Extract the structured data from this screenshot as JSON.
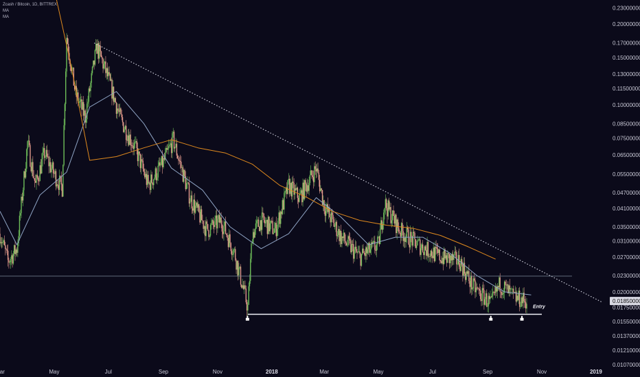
{
  "legend": {
    "symbol_line": "Zcash / Bitcoin, 1D, BITTREX",
    "ma1": "MA",
    "ma2": "MA"
  },
  "chart_data": {
    "type": "candlestick",
    "symbol": "Zcash / Bitcoin",
    "timeframe": "1D",
    "exchange": "BITTREX",
    "log_scale": true,
    "ylim": [
      0.0107,
      0.246
    ],
    "x_range": [
      "2017-03-01",
      "2019-01-15"
    ],
    "y_ticks": [
      "0.23000000",
      "0.20000000",
      "0.17000000",
      "0.15000000",
      "0.13000000",
      "0.11500000",
      "0.10000000",
      "0.08500000",
      "0.07500000",
      "0.06500000",
      "0.05500000",
      "0.04700000",
      "0.04100000",
      "0.03500000",
      "0.03100000",
      "0.02700000",
      "0.02300000",
      "0.02000000",
      "0.01750000",
      "0.01550000",
      "0.01370000",
      "0.01210000",
      "0.01070000"
    ],
    "x_ticks": [
      {
        "label": "Mar",
        "date": "2017-03-01"
      },
      {
        "label": "May",
        "date": "2017-05-01"
      },
      {
        "label": "Jul",
        "date": "2017-07-01"
      },
      {
        "label": "Sep",
        "date": "2017-09-01"
      },
      {
        "label": "Nov",
        "date": "2017-11-01"
      },
      {
        "label": "2018",
        "date": "2018-01-01",
        "bold": true
      },
      {
        "label": "Mar",
        "date": "2018-03-01"
      },
      {
        "label": "May",
        "date": "2018-05-01"
      },
      {
        "label": "Jul",
        "date": "2018-07-01"
      },
      {
        "label": "Sep",
        "date": "2018-09-01"
      },
      {
        "label": "Nov",
        "date": "2018-11-01"
      },
      {
        "label": "2019",
        "date": "2019-01-01",
        "bold": true
      }
    ],
    "current_price": "0.01850000",
    "price_path": [
      [
        "2017-03-01",
        0.033
      ],
      [
        "2017-03-10",
        0.026
      ],
      [
        "2017-03-20",
        0.029
      ],
      [
        "2017-04-01",
        0.072
      ],
      [
        "2017-04-10",
        0.05
      ],
      [
        "2017-04-20",
        0.066
      ],
      [
        "2017-05-01",
        0.055
      ],
      [
        "2017-05-10",
        0.049
      ],
      [
        "2017-05-15",
        0.18
      ],
      [
        "2017-05-25",
        0.11
      ],
      [
        "2017-06-05",
        0.09
      ],
      [
        "2017-06-18",
        0.165
      ],
      [
        "2017-07-01",
        0.125
      ],
      [
        "2017-07-15",
        0.088
      ],
      [
        "2017-08-01",
        0.068
      ],
      [
        "2017-08-15",
        0.05
      ],
      [
        "2017-09-01",
        0.061
      ],
      [
        "2017-09-12",
        0.074
      ],
      [
        "2017-10-01",
        0.045
      ],
      [
        "2017-10-20",
        0.034
      ],
      [
        "2017-11-05",
        0.037
      ],
      [
        "2017-11-20",
        0.028
      ],
      [
        "2017-12-05",
        0.0175
      ],
      [
        "2017-12-10",
        0.033
      ],
      [
        "2017-12-20",
        0.037
      ],
      [
        "2018-01-05",
        0.034
      ],
      [
        "2018-01-20",
        0.05
      ],
      [
        "2018-02-01",
        0.045
      ],
      [
        "2018-02-20",
        0.058
      ],
      [
        "2018-03-01",
        0.042
      ],
      [
        "2018-03-20",
        0.032
      ],
      [
        "2018-04-10",
        0.027
      ],
      [
        "2018-05-01",
        0.03
      ],
      [
        "2018-05-08",
        0.043
      ],
      [
        "2018-05-25",
        0.034
      ],
      [
        "2018-06-15",
        0.03
      ],
      [
        "2018-07-10",
        0.027
      ],
      [
        "2018-08-01",
        0.026
      ],
      [
        "2018-08-15",
        0.021
      ],
      [
        "2018-09-05",
        0.018
      ],
      [
        "2018-09-15",
        0.0215
      ],
      [
        "2018-10-01",
        0.019
      ],
      [
        "2018-10-15",
        0.0185
      ]
    ],
    "ma_fast": [
      [
        "2017-03-01",
        0.04
      ],
      [
        "2017-03-20",
        0.03
      ],
      [
        "2017-04-15",
        0.046
      ],
      [
        "2017-05-15",
        0.056
      ],
      [
        "2017-06-10",
        0.098
      ],
      [
        "2017-07-10",
        0.112
      ],
      [
        "2017-08-10",
        0.085
      ],
      [
        "2017-09-10",
        0.058
      ],
      [
        "2017-10-15",
        0.048
      ],
      [
        "2017-11-15",
        0.035
      ],
      [
        "2017-12-20",
        0.029
      ],
      [
        "2018-01-20",
        0.033
      ],
      [
        "2018-02-20",
        0.045
      ],
      [
        "2018-03-20",
        0.038
      ],
      [
        "2018-04-20",
        0.03
      ],
      [
        "2018-05-20",
        0.032
      ],
      [
        "2018-06-20",
        0.032
      ],
      [
        "2018-07-20",
        0.028
      ],
      [
        "2018-08-20",
        0.023
      ],
      [
        "2018-09-20",
        0.02
      ],
      [
        "2018-10-20",
        0.0195
      ]
    ],
    "ma_slow": [
      [
        "2017-04-28",
        0.3
      ],
      [
        "2017-05-20",
        0.14
      ],
      [
        "2017-06-10",
        0.062
      ],
      [
        "2017-07-10",
        0.064
      ],
      [
        "2017-08-10",
        0.069
      ],
      [
        "2017-09-10",
        0.074
      ],
      [
        "2017-10-10",
        0.069
      ],
      [
        "2017-11-10",
        0.066
      ],
      [
        "2017-12-10",
        0.06
      ],
      [
        "2018-01-10",
        0.05
      ],
      [
        "2018-02-10",
        0.045
      ],
      [
        "2018-03-10",
        0.04
      ],
      [
        "2018-04-10",
        0.037
      ],
      [
        "2018-05-10",
        0.0355
      ],
      [
        "2018-06-10",
        0.0345
      ],
      [
        "2018-07-10",
        0.0325
      ],
      [
        "2018-08-10",
        0.0295
      ],
      [
        "2018-09-10",
        0.0265
      ]
    ],
    "annotations": {
      "trendline": {
        "from": [
          "2017-06-15",
          0.17
        ],
        "to": [
          "2019-01-08",
          0.0183
        ],
        "style": "dotted"
      },
      "horizontal_line": {
        "price": 0.0229,
        "from": "2017-03-01",
        "to": "2018-12-05"
      },
      "support_line": {
        "price": 0.0165,
        "from": "2017-12-05",
        "to": "2018-11-01"
      },
      "markers": [
        {
          "date": "2017-12-05",
          "price": 0.0159
        },
        {
          "date": "2018-09-05",
          "price": 0.0159
        },
        {
          "date": "2018-10-10",
          "price": 0.0159
        }
      ],
      "entry_label": {
        "text": "Entry",
        "date": "2018-10-22",
        "price": 0.0174
      }
    }
  }
}
